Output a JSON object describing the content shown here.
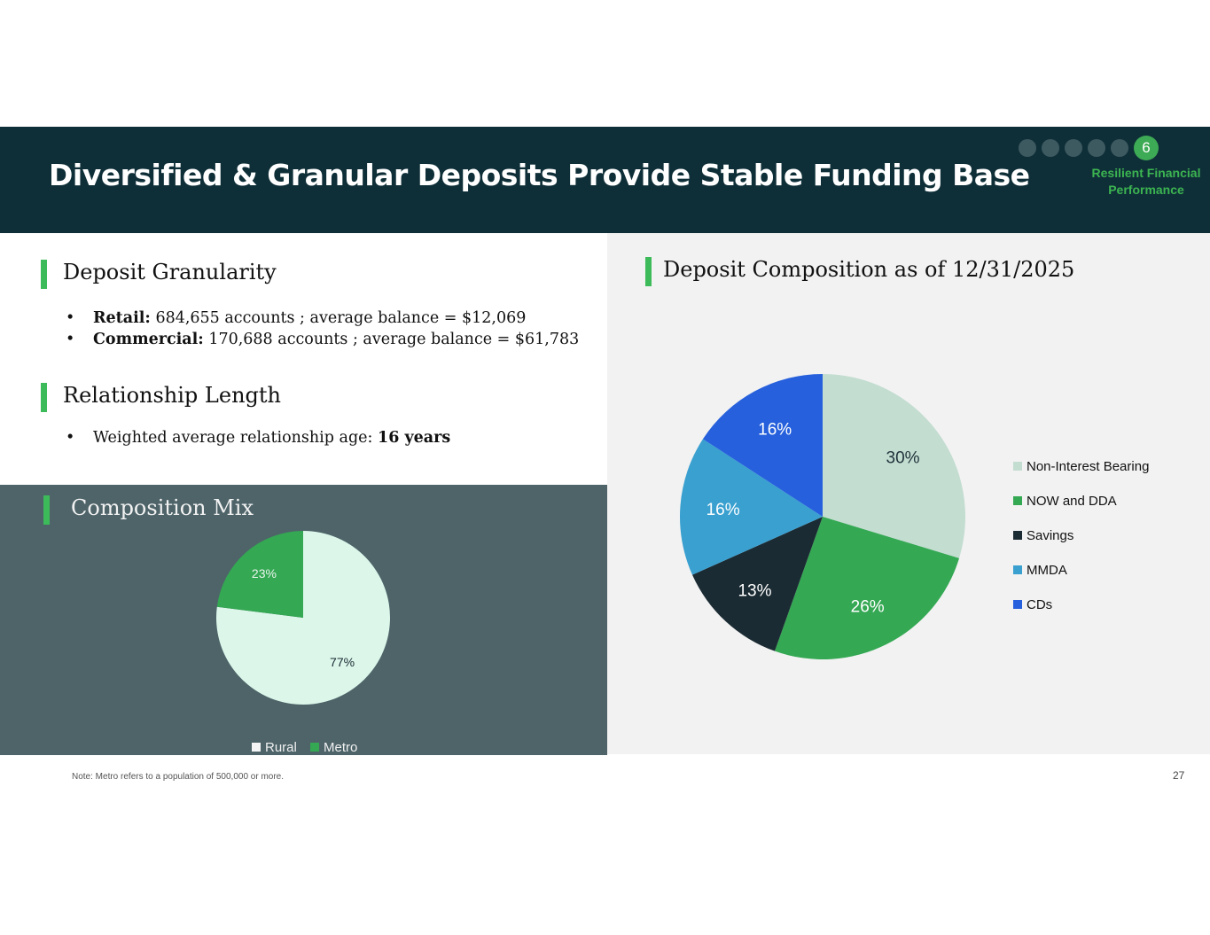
{
  "title": "Diversified & Granular Deposits Provide Stable Funding Base",
  "nav": {
    "active_step": "6",
    "section_label": "Resilient Financial Performance"
  },
  "granularity": {
    "heading": "Deposit Granularity",
    "retail_label": "Retail:",
    "retail_text": "684,655 accounts ; average balance = $12,069",
    "commercial_label": "Commercial:",
    "commercial_text": "170,688 accounts ; average balance = $61,783"
  },
  "relationship": {
    "heading": "Relationship Length",
    "text": "Weighted average relationship age:",
    "value": "16 years"
  },
  "mix": {
    "heading": "Composition Mix"
  },
  "composition": {
    "heading": "Deposit Composition as of 12/31/2025"
  },
  "note": "Note: Metro refers to a population of 500,000 or more.",
  "page_number": "27",
  "colors": {
    "header_bg": "#0f2f38",
    "accent_green": "#3dbb5a"
  },
  "chart_data": [
    {
      "type": "pie",
      "title": "",
      "categories": [
        "Rural",
        "Metro"
      ],
      "values": [
        77,
        23
      ],
      "labels": [
        "77%",
        "23%"
      ],
      "colors": [
        "#dcf7ea",
        "#34a853"
      ],
      "label_colors": [
        "#1a2a33",
        "#e9f5ec"
      ],
      "legend": "bottom"
    },
    {
      "type": "pie",
      "title": "",
      "categories": [
        "Non-Interest Bearing",
        "NOW and DDA",
        "Savings",
        "MMDA",
        "CDs"
      ],
      "values": [
        30,
        26,
        13,
        16,
        16
      ],
      "labels": [
        "30%",
        "26%",
        "13%",
        "16%",
        "16%"
      ],
      "colors": [
        "#c3ddd1",
        "#34a853",
        "#1b2b33",
        "#3aa0d0",
        "#2660dc"
      ],
      "label_colors": [
        "#22343c",
        "#ffffff",
        "#ffffff",
        "#ffffff",
        "#ffffff"
      ],
      "legend": "right"
    }
  ]
}
